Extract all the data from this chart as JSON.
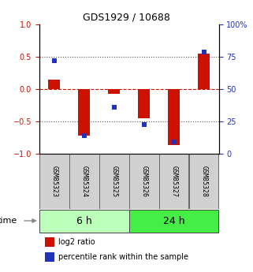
{
  "title": "GDS1929 / 10688",
  "samples": [
    "GSM85323",
    "GSM85324",
    "GSM85325",
    "GSM85326",
    "GSM85327",
    "GSM85328"
  ],
  "log2_ratio": [
    0.15,
    -0.72,
    -0.07,
    -0.45,
    -0.87,
    0.55
  ],
  "percentile_rank": [
    0.44,
    -0.73,
    -0.28,
    -0.55,
    -0.82,
    0.57
  ],
  "groups": [
    {
      "label": "6 h",
      "samples": [
        0,
        1,
        2
      ],
      "color": "#bbffbb"
    },
    {
      "label": "24 h",
      "samples": [
        3,
        4,
        5
      ],
      "color": "#44ee44"
    }
  ],
  "ylim": [
    -1,
    1
  ],
  "yticks_left": [
    -1,
    -0.5,
    0,
    0.5,
    1
  ],
  "yticks_right": [
    0,
    25,
    50,
    75,
    100
  ],
  "bar_color": "#cc1100",
  "dot_color": "#2233bb",
  "hline_color": "#cc1100",
  "dotted_color": "#555555",
  "bar_width": 0.4,
  "dot_size": 22,
  "time_label": "time",
  "legend_bar_label": "log2 ratio",
  "legend_dot_label": "percentile rank within the sample",
  "title_fontsize": 9,
  "tick_fontsize": 7,
  "sample_fontsize": 6,
  "group_fontsize": 9,
  "legend_fontsize": 7
}
